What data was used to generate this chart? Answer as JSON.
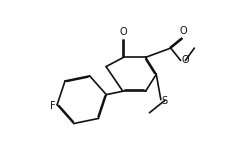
{
  "bg_color": "#ffffff",
  "line_color": "#111111",
  "line_width": 1.2,
  "font_size": 7.0,
  "fig_width": 2.27,
  "fig_height": 1.57,
  "dpi": 100,
  "xlim": [
    0,
    10
  ],
  "ylim": [
    0,
    7
  ]
}
